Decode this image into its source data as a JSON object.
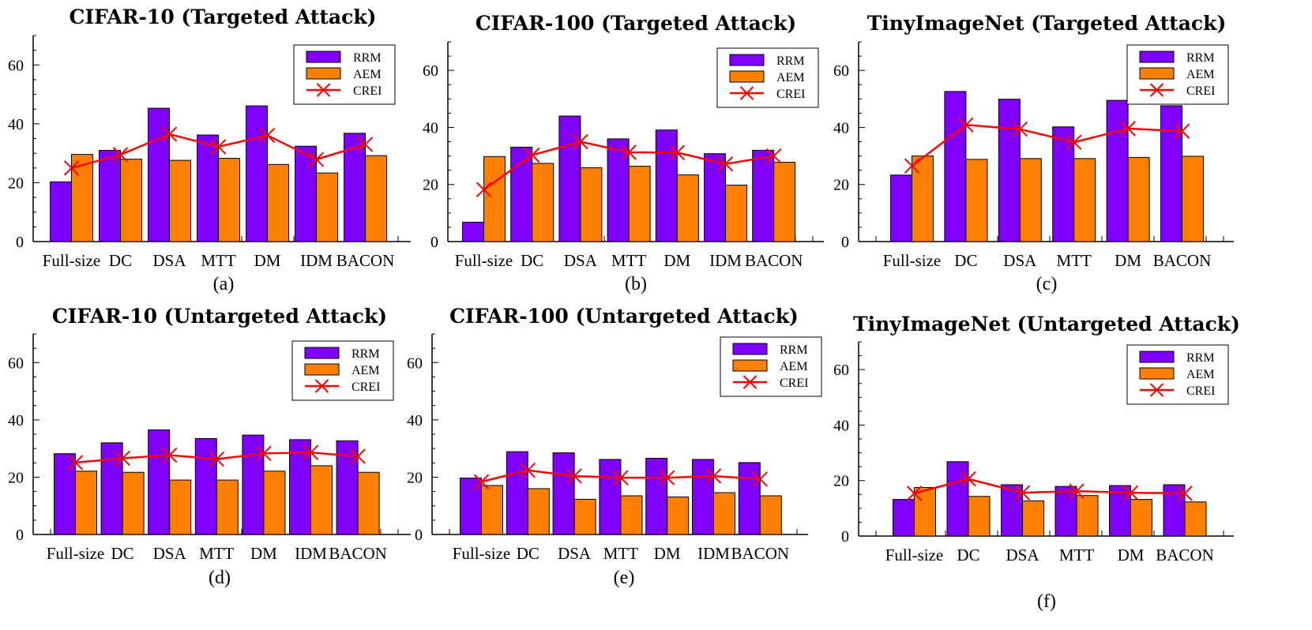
{
  "figure": {
    "colors": {
      "RRM": "#8000ff",
      "AEM": "#ff8000",
      "CREI": "#ff0000"
    },
    "icons": [
      "cross-marker-icon"
    ]
  },
  "chart_data": [
    {
      "type": "bar",
      "title": "CIFAR-10 (Targeted Attack)",
      "caption": "(a)",
      "categories": [
        "Full-size",
        "DC",
        "DSA",
        "MTT",
        "DM",
        "IDM",
        "BACON"
      ],
      "ylim": [
        0,
        70
      ],
      "yticks": [
        0,
        20,
        40,
        60
      ],
      "legend": [
        "RRM",
        "AEM",
        "CREI"
      ],
      "legend_position": "top-right",
      "series": [
        {
          "name": "RRM",
          "kind": "bar",
          "values": [
            20.3,
            31.0,
            45.3,
            36.2,
            46.1,
            32.4,
            36.8
          ]
        },
        {
          "name": "AEM",
          "kind": "bar",
          "values": [
            29.6,
            28.0,
            27.6,
            28.3,
            26.2,
            23.3,
            29.2
          ]
        },
        {
          "name": "CREI",
          "kind": "line",
          "values": [
            25.0,
            29.5,
            36.5,
            32.2,
            36.1,
            27.9,
            33.0
          ]
        }
      ]
    },
    {
      "type": "bar",
      "title": "CIFAR-100 (Targeted Attack)",
      "caption": "(b)",
      "categories": [
        "Full-size",
        "DC",
        "DSA",
        "MTT",
        "DM",
        "IDM",
        "BACON"
      ],
      "ylim": [
        0,
        70
      ],
      "yticks": [
        0,
        20,
        40,
        60
      ],
      "legend": [
        "RRM",
        "AEM",
        "CREI"
      ],
      "legend_position": "top-right",
      "series": [
        {
          "name": "RRM",
          "kind": "bar",
          "values": [
            6.8,
            33.1,
            44.0,
            36.0,
            39.1,
            30.8,
            32.0
          ]
        },
        {
          "name": "AEM",
          "kind": "bar",
          "values": [
            29.8,
            27.4,
            25.9,
            26.4,
            23.4,
            19.8,
            27.8
          ]
        },
        {
          "name": "CREI",
          "kind": "line",
          "values": [
            18.2,
            30.3,
            35.0,
            31.3,
            31.2,
            27.2,
            30.0
          ]
        }
      ]
    },
    {
      "type": "bar",
      "title": "TinyImageNet (Targeted Attack)",
      "caption": "(c)",
      "categories": [
        "Full-size",
        "DC",
        "DSA",
        "MTT",
        "DM",
        "BACON"
      ],
      "ylim": [
        0,
        70
      ],
      "yticks": [
        0,
        20,
        40,
        60
      ],
      "legend": [
        "RRM",
        "AEM",
        "CREI"
      ],
      "legend_position": "top-right",
      "series": [
        {
          "name": "RRM",
          "kind": "bar",
          "values": [
            23.3,
            52.6,
            49.9,
            40.2,
            49.5,
            47.6
          ]
        },
        {
          "name": "AEM",
          "kind": "bar",
          "values": [
            30.0,
            28.8,
            29.1,
            29.1,
            29.5,
            29.9
          ]
        },
        {
          "name": "CREI",
          "kind": "line",
          "values": [
            26.5,
            40.9,
            39.4,
            34.8,
            39.6,
            38.7
          ]
        }
      ]
    },
    {
      "type": "bar",
      "title": "CIFAR-10 (Untargeted Attack)",
      "caption": "(d)",
      "categories": [
        "Full-size",
        "DC",
        "DSA",
        "MTT",
        "DM",
        "IDM",
        "BACON"
      ],
      "ylim": [
        0,
        70
      ],
      "yticks": [
        0,
        20,
        40,
        60
      ],
      "legend": [
        "RRM",
        "AEM",
        "CREI"
      ],
      "legend_position": "top-right",
      "series": [
        {
          "name": "RRM",
          "kind": "bar",
          "values": [
            28.2,
            32.0,
            36.5,
            33.5,
            34.7,
            33.1,
            32.7
          ]
        },
        {
          "name": "AEM",
          "kind": "bar",
          "values": [
            22.1,
            21.7,
            19.0,
            19.0,
            22.1,
            24.0,
            21.7
          ]
        },
        {
          "name": "CREI",
          "kind": "line",
          "values": [
            25.1,
            26.6,
            27.7,
            26.3,
            28.3,
            28.6,
            27.3
          ]
        }
      ]
    },
    {
      "type": "bar",
      "title": "CIFAR-100 (Untargeted Attack)",
      "caption": "(e)",
      "categories": [
        "Full-size",
        "DC",
        "DSA",
        "MTT",
        "DM",
        "IDM",
        "BACON"
      ],
      "ylim": [
        0,
        70
      ],
      "yticks": [
        0,
        20,
        40,
        60
      ],
      "legend": [
        "RRM",
        "AEM",
        "CREI"
      ],
      "legend_position": "top-right",
      "series": [
        {
          "name": "RRM",
          "kind": "bar",
          "values": [
            19.7,
            28.9,
            28.5,
            26.2,
            26.6,
            26.2,
            25.1
          ]
        },
        {
          "name": "AEM",
          "kind": "bar",
          "values": [
            17.1,
            16.0,
            12.3,
            13.5,
            13.1,
            14.6,
            13.5
          ]
        },
        {
          "name": "CREI",
          "kind": "line",
          "values": [
            18.4,
            22.4,
            20.4,
            19.8,
            19.8,
            20.4,
            19.3
          ]
        }
      ]
    },
    {
      "type": "bar",
      "title": "TinyImageNet (Untargeted Attack)",
      "caption": "(f)",
      "categories": [
        "Full-size",
        "DC",
        "DSA",
        "MTT",
        "DM",
        "BACON"
      ],
      "ylim": [
        0,
        70
      ],
      "yticks": [
        0,
        20,
        40,
        60
      ],
      "legend": [
        "RRM",
        "AEM",
        "CREI"
      ],
      "legend_position": "top-right",
      "series": [
        {
          "name": "RRM",
          "kind": "bar",
          "values": [
            13.2,
            26.8,
            18.5,
            17.9,
            18.2,
            18.5
          ]
        },
        {
          "name": "AEM",
          "kind": "bar",
          "values": [
            17.5,
            14.3,
            12.7,
            14.6,
            13.2,
            12.3
          ]
        },
        {
          "name": "CREI",
          "kind": "line",
          "values": [
            15.4,
            20.6,
            15.6,
            16.2,
            15.6,
            15.4
          ]
        }
      ]
    }
  ]
}
